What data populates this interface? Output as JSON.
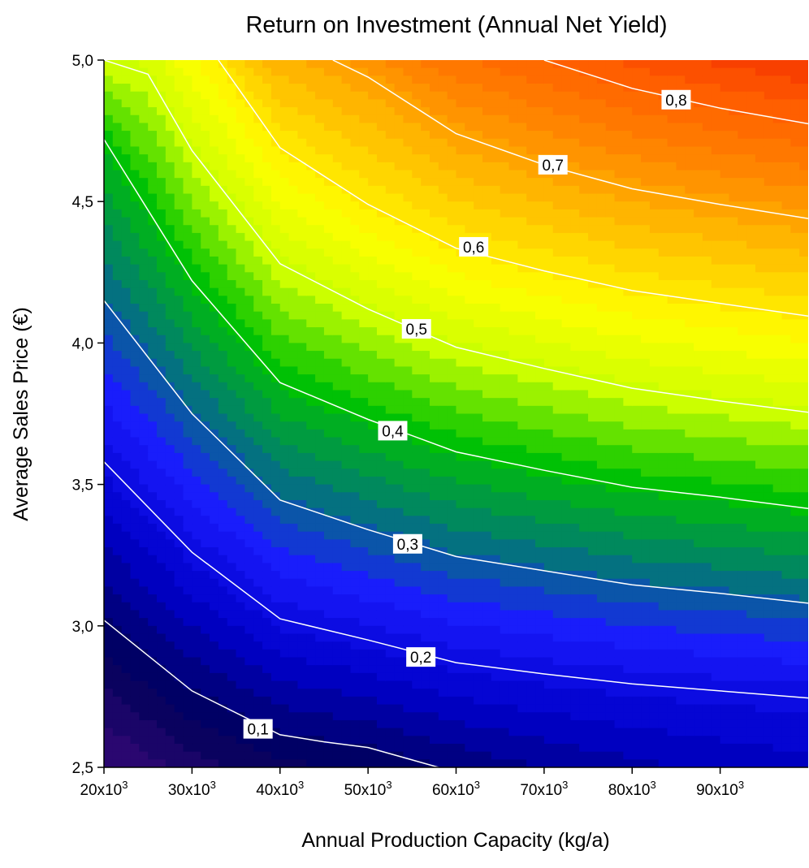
{
  "chart_data": {
    "type": "contour",
    "title": "Return on Investment (Annual Net Yield)",
    "xlabel": "Annual Production Capacity (kg/a)",
    "ylabel": "Average Sales Price (€)",
    "xlim": [
      20000,
      100000
    ],
    "ylim": [
      2.5,
      5.0
    ],
    "x_ticks": [
      {
        "value": 20000,
        "mant": "20x10",
        "exp": "3"
      },
      {
        "value": 30000,
        "mant": "30x10",
        "exp": "3"
      },
      {
        "value": 40000,
        "mant": "40x10",
        "exp": "3"
      },
      {
        "value": 50000,
        "mant": "50x10",
        "exp": "3"
      },
      {
        "value": 60000,
        "mant": "60x10",
        "exp": "3"
      },
      {
        "value": 70000,
        "mant": "70x10",
        "exp": "3"
      },
      {
        "value": 80000,
        "mant": "80x10",
        "exp": "3"
      },
      {
        "value": 90000,
        "mant": "90x10",
        "exp": "3"
      }
    ],
    "y_ticks": [
      {
        "value": 2.5,
        "label": "2,5"
      },
      {
        "value": 3.0,
        "label": "3,0"
      },
      {
        "value": 3.5,
        "label": "3,5"
      },
      {
        "value": 4.0,
        "label": "4,0"
      },
      {
        "value": 4.5,
        "label": "4,5"
      },
      {
        "value": 5.0,
        "label": "5,0"
      }
    ],
    "colormap": [
      "#3a0a78",
      "#00005a",
      "#0000c8",
      "#1a1aff",
      "#00806a",
      "#00c400",
      "#c8ff00",
      "#ffff00",
      "#ffc400",
      "#ff8800",
      "#ff5a00",
      "#f02000"
    ],
    "contour_color": "#ffffff",
    "contours": [
      {
        "level": 0.1,
        "label": "0,1",
        "label_at": [
          37500,
          2.636
        ],
        "points": [
          [
            20000,
            3.02
          ],
          [
            30000,
            2.77
          ],
          [
            40000,
            2.615
          ],
          [
            45000,
            2.59
          ],
          [
            50000,
            2.57
          ],
          [
            58000,
            2.5
          ]
        ]
      },
      {
        "level": 0.2,
        "label": "0,2",
        "label_at": [
          56000,
          2.89
        ],
        "points": [
          [
            20000,
            3.58
          ],
          [
            30000,
            3.26
          ],
          [
            40000,
            3.025
          ],
          [
            50000,
            2.95
          ],
          [
            60000,
            2.87
          ],
          [
            70000,
            2.83
          ],
          [
            80000,
            2.795
          ],
          [
            90000,
            2.77
          ],
          [
            100000,
            2.745
          ]
        ]
      },
      {
        "level": 0.3,
        "label": "0,3",
        "label_at": [
          54500,
          3.29
        ],
        "points": [
          [
            20000,
            4.15
          ],
          [
            30000,
            3.75
          ],
          [
            40000,
            3.445
          ],
          [
            50000,
            3.34
          ],
          [
            60000,
            3.245
          ],
          [
            70000,
            3.195
          ],
          [
            80000,
            3.145
          ],
          [
            90000,
            3.115
          ],
          [
            100000,
            3.08
          ]
        ]
      },
      {
        "level": 0.4,
        "label": "0,4",
        "label_at": [
          52800,
          3.69
        ],
        "points": [
          [
            20000,
            4.72
          ],
          [
            30000,
            4.22
          ],
          [
            40000,
            3.86
          ],
          [
            50000,
            3.73
          ],
          [
            60000,
            3.615
          ],
          [
            70000,
            3.55
          ],
          [
            80000,
            3.49
          ],
          [
            90000,
            3.455
          ],
          [
            100000,
            3.415
          ]
        ]
      },
      {
        "level": 0.5,
        "label": "0,5",
        "label_at": [
          55500,
          4.05
        ],
        "points": [
          [
            20000,
            5.0
          ],
          [
            25000,
            4.95
          ],
          [
            30000,
            4.68
          ],
          [
            40000,
            4.28
          ],
          [
            50000,
            4.12
          ],
          [
            60000,
            3.985
          ],
          [
            70000,
            3.91
          ],
          [
            80000,
            3.84
          ],
          [
            90000,
            3.795
          ],
          [
            100000,
            3.755
          ]
        ]
      },
      {
        "level": 0.6,
        "label": "0,6",
        "label_at": [
          62000,
          4.34
        ],
        "points": [
          [
            33000,
            5.0
          ],
          [
            40000,
            4.69
          ],
          [
            50000,
            4.49
          ],
          [
            60000,
            4.335
          ],
          [
            70000,
            4.255
          ],
          [
            80000,
            4.185
          ],
          [
            90000,
            4.14
          ],
          [
            100000,
            4.095
          ]
        ]
      },
      {
        "level": 0.7,
        "label": "0,7",
        "label_at": [
          71000,
          4.63
        ],
        "points": [
          [
            46000,
            5.0
          ],
          [
            50000,
            4.94
          ],
          [
            60000,
            4.74
          ],
          [
            70000,
            4.63
          ],
          [
            80000,
            4.545
          ],
          [
            90000,
            4.49
          ],
          [
            100000,
            4.44
          ]
        ]
      },
      {
        "level": 0.8,
        "label": "0,8",
        "label_at": [
          85000,
          4.86
        ],
        "points": [
          [
            70000,
            5.0
          ],
          [
            80000,
            4.9
          ],
          [
            90000,
            4.83
          ],
          [
            100000,
            4.775
          ]
        ]
      }
    ]
  }
}
